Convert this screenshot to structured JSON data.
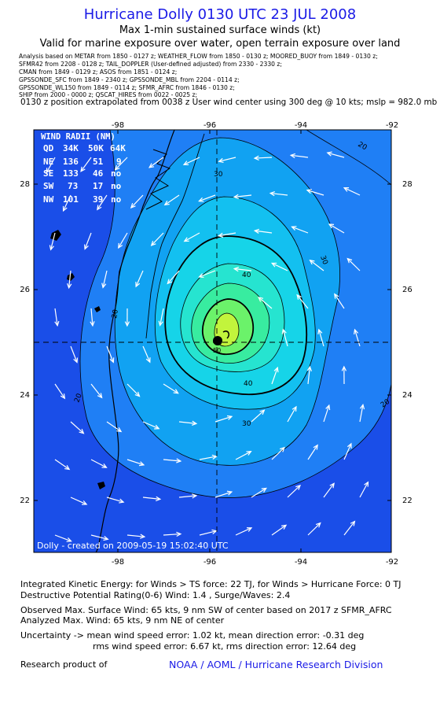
{
  "header": {
    "title": "Hurricane Dolly 0130 UTC 23 JUL 2008",
    "subtitle": "Max 1-min sustained surface winds (kt)",
    "valid": "Valid for marine exposure over water, open terrain exposure over land"
  },
  "sources": [
    "Analysis based on   METAR from 1850 - 0127 z;   WEATHER_FLOW from 1850 - 0130 z;   MOORED_BUOY from 1849 - 0130 z;",
    "SFMR42 from 2208 - 0128 z;   TAIL_DOPPLER (User-defined adjusted) from 2330 - 2330 z;",
    "CMAN from 1849 - 0129 z;   ASOS from 1851 - 0124 z;",
    "GPSSONDE_SFC from 1849 - 2340 z;   GPSSONDE_MBL from 2204 - 0114 z;",
    "GPSSONDE_WL150 from 1849 - 0114 z;   SFMR_AFRC from 1846 - 0130 z;",
    "SHIP from 2000 - 0000 z;   QSCAT_HIRES from 0022 - 0025 z;"
  ],
  "position_line": "0130 z position extrapolated from 0038 z User wind center using 300 deg @ 10 kts; mslp = 982.0 mb",
  "map": {
    "lon_ticks": [
      "-98",
      "-96",
      "-94",
      "-92"
    ],
    "lat_ticks": [
      "28",
      "26",
      "24",
      "22"
    ],
    "contour_labels": [
      "20",
      "20",
      "20",
      "20",
      "30",
      "30",
      "30",
      "40",
      "40",
      "50"
    ],
    "credit": "Dolly - created on 2009-05-19 15:02:40 UTC",
    "wind_radii": {
      "title": "WIND RADII (NM)",
      "header": [
        "QD",
        "34K",
        "50K",
        "64K"
      ],
      "rows": [
        [
          "NE",
          "136",
          "51",
          "9"
        ],
        [
          "SE",
          "133",
          "46",
          "no"
        ],
        [
          "SW",
          "73",
          "17",
          "no"
        ],
        [
          "NW",
          "101",
          "39",
          "no"
        ]
      ]
    },
    "colors": {
      "background": "#1a4ee8",
      "c20": "#1f7ff5",
      "c30": "#11a2f2",
      "c35": "#13c0f0",
      "c40": "#16d4e8",
      "c45": "#26e4d0",
      "c50": "#38eca0",
      "c55": "#6bf26a",
      "c60": "#c2f43c",
      "coast": "#000000",
      "arrows": "#ffffff"
    }
  },
  "info": {
    "ike": "Integrated Kinetic Energy:  for Winds > TS force: 22 TJ,  for Winds > Hurricane Force: 0 TJ",
    "dpr": "Destructive Potential Rating(0-6)   Wind: 1.4 , Surge/Waves: 2.4",
    "observed": "Observed Max. Surface Wind: 65 kts, 9 nm SW of center based on 2017 z SFMR_AFRC",
    "analyzed": "Analyzed Max. Wind: 65 kts, 9 nm NE of center",
    "uncertainty1": "Uncertainty -> mean wind speed error: 1.02 kt,   mean direction error:  -0.31 deg",
    "uncertainty2": "rms wind speed error: 6.67 kt,   rms direction error: 12.64 deg",
    "research": "Research product of",
    "noaa": "NOAA / AOML / Hurricane Research Division"
  }
}
